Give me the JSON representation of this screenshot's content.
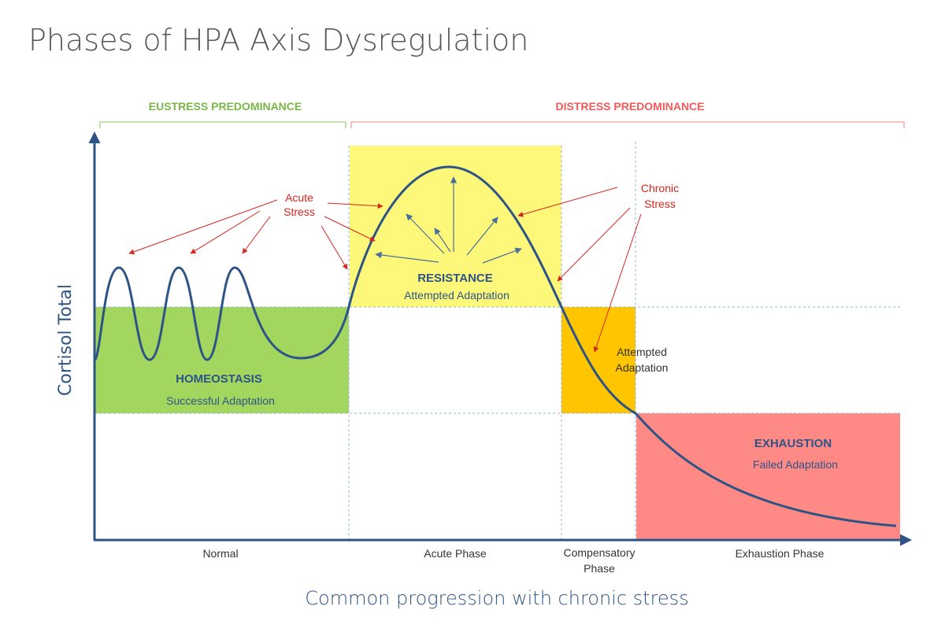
{
  "title": "Phases of HPA Axis Dysregulation",
  "bands": {
    "eustress": "EUSTRESS PREDOMINANCE",
    "distress": "DISTRESS PREDOMINANCE"
  },
  "y_axis_label": "Cortisol Total",
  "x_axis_label": "Common progression with chronic stress",
  "phases": {
    "normal": "Normal",
    "acute": "Acute Phase",
    "compensatory_line1": "Compensatory",
    "compensatory_line2": "Phase",
    "exhaustion": "Exhaustion Phase"
  },
  "zones": {
    "homeostasis_title": "HOMEOSTASIS",
    "homeostasis_sub": "Successful Adaptation",
    "resistance_title": "RESISTANCE",
    "resistance_sub": "Attempted Adaptation",
    "attempted_line1": "Attempted",
    "attempted_line2": "Adaptation",
    "exhaustion_title": "EXHAUSTION",
    "exhaustion_sub": "Failed Adaptation"
  },
  "callouts": {
    "acute_line1": "Acute",
    "acute_line2": "Stress",
    "chronic_line1": "Chronic",
    "chronic_line2": "Stress"
  },
  "colors": {
    "homeostasis": "#a3d65f",
    "resistance": "#fdf87a",
    "compensatory": "#ffc600",
    "exhaustion": "#ff8a85",
    "curve": "#2e5486",
    "axis": "#2e5486",
    "eustress": "#7ab648",
    "distress": "#f05a5a",
    "arrow_red": "#d7261e",
    "arrow_blue": "#4a6f9a"
  }
}
